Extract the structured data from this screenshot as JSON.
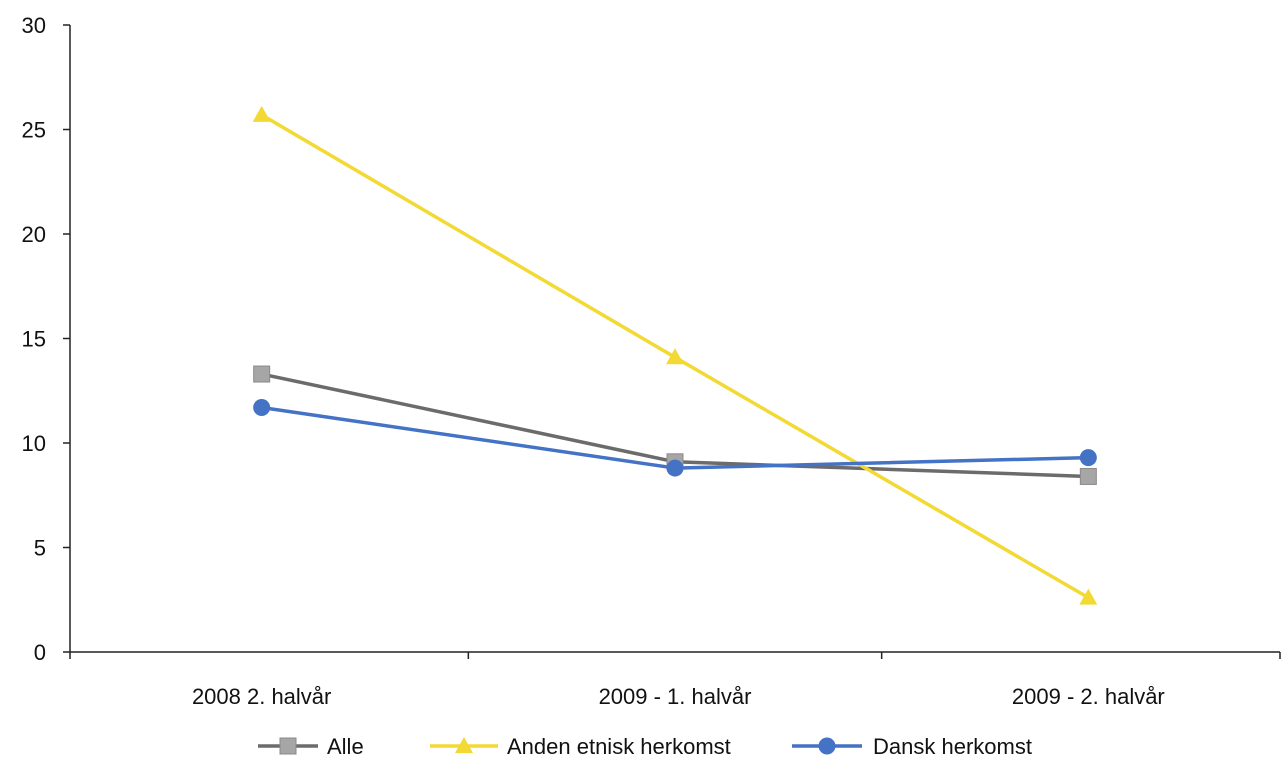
{
  "chart_data": {
    "type": "line",
    "categories": [
      "2008 2. halvår",
      "2009 - 1. halvår",
      "2009 - 2. halvår"
    ],
    "series": [
      {
        "name": "Alle",
        "values": [
          13.3,
          9.1,
          8.4
        ],
        "color": "#6b6b6b",
        "marker": "square",
        "marker_color": "#a6a6a6"
      },
      {
        "name": "Anden etnisk herkomst",
        "values": [
          25.7,
          14.1,
          2.6
        ],
        "color": "#f2d933",
        "marker": "triangle",
        "marker_color": "#f2d933"
      },
      {
        "name": "Dansk herkomst",
        "values": [
          11.7,
          8.8,
          9.3
        ],
        "color": "#4472c4",
        "marker": "circle",
        "marker_color": "#4472c4"
      }
    ],
    "ylim": [
      0,
      30
    ],
    "yticks": [
      0,
      5,
      10,
      15,
      20,
      25,
      30
    ],
    "grid": false,
    "legend_position": "bottom"
  }
}
